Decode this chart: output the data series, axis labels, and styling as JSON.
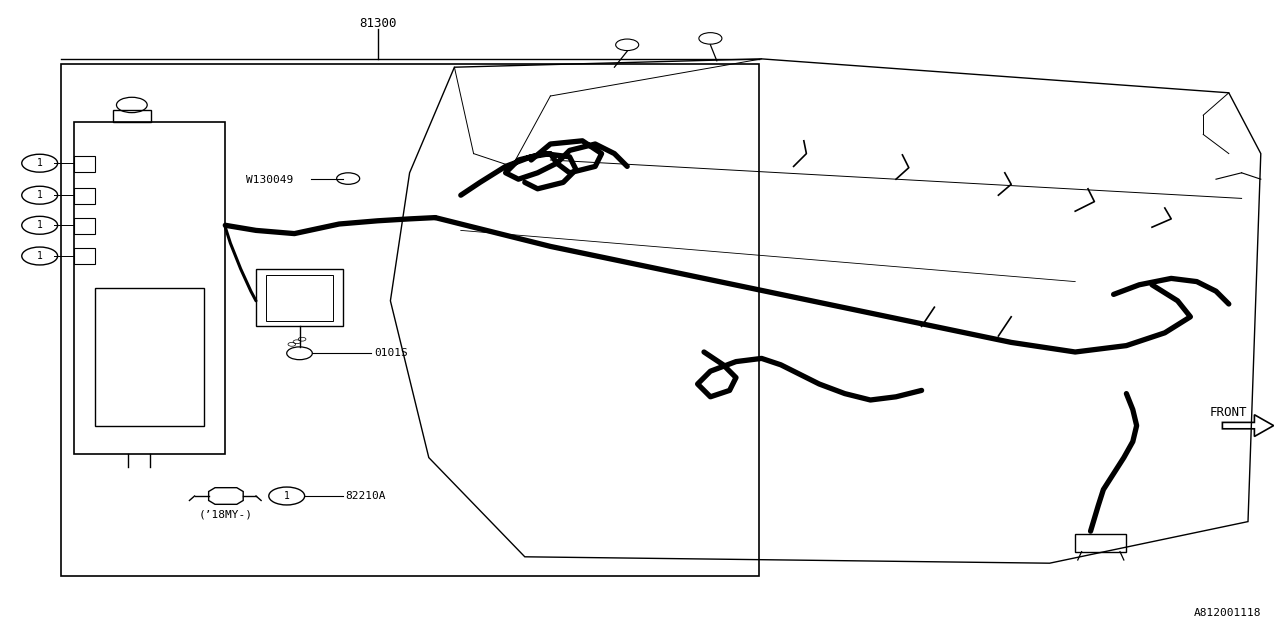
{
  "bg_color": "#ffffff",
  "line_color": "#000000",
  "fig_width": 12.8,
  "fig_height": 6.4,
  "dpi": 100,
  "labels": {
    "part_81300": "81300",
    "part_W130049": "W130049",
    "part_0101S": "0101S",
    "part_82210A": "82210A",
    "label_18MY": "(’18MY-)",
    "label_FRONT": "FRONT",
    "label_code": "A812001118"
  }
}
